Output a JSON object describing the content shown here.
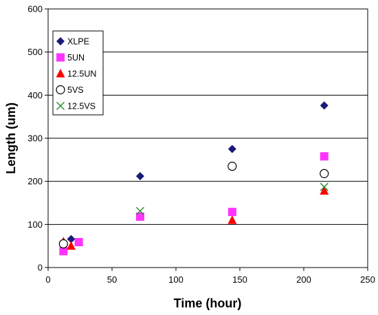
{
  "chart_data": {
    "type": "scatter",
    "title": "",
    "xlabel": "Time (hour)",
    "ylabel": "Length (um)",
    "xlim": [
      0,
      250
    ],
    "ylim": [
      0,
      600
    ],
    "xticks": [
      "0",
      "50",
      "100",
      "150",
      "200",
      "250"
    ],
    "yticks": [
      "0",
      "100",
      "200",
      "300",
      "400",
      "500",
      "600"
    ],
    "grid": "horizontal",
    "legend_position": "top-left",
    "series": [
      {
        "name": "XLPE",
        "marker": "diamond",
        "color": "#1a1a7a",
        "x": [
          18,
          72,
          144,
          216
        ],
        "y": [
          66,
          212,
          275,
          376
        ]
      },
      {
        "name": "5UN",
        "marker": "square",
        "color": "#ff33ff",
        "x": [
          12,
          24,
          72,
          144,
          216
        ],
        "y": [
          38,
          59,
          118,
          129,
          258
        ]
      },
      {
        "name": "12.5UN",
        "marker": "triangle",
        "color": "#ff0000",
        "x": [
          12,
          18,
          144,
          216
        ],
        "y": [
          60,
          50,
          110,
          178
        ]
      },
      {
        "name": "5VS",
        "marker": "circle-open",
        "color": "#000000",
        "x": [
          12,
          144,
          216
        ],
        "y": [
          55,
          235,
          218
        ]
      },
      {
        "name": "12.5VS",
        "marker": "x",
        "color": "#2e8b2e",
        "x": [
          72,
          216
        ],
        "y": [
          131,
          187
        ]
      }
    ]
  }
}
